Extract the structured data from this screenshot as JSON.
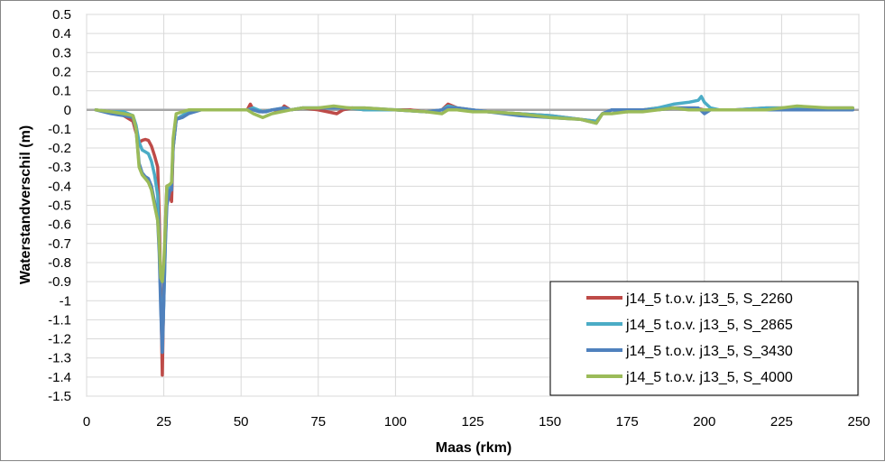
{
  "chart_data": {
    "type": "line",
    "xlabel": "Maas (rkm)",
    "ylabel": "Waterstandverschil (m)",
    "xlim": [
      0,
      250
    ],
    "ylim": [
      -1.5,
      0.5
    ],
    "x_ticks": [
      0,
      25,
      50,
      75,
      100,
      125,
      150,
      175,
      200,
      225,
      250
    ],
    "y_ticks": [
      0.5,
      0.4,
      0.3,
      0.2,
      0.1,
      0,
      -0.1,
      -0.2,
      -0.3,
      -0.4,
      -0.5,
      -0.6,
      -0.7,
      -0.8,
      -0.9,
      -1,
      -1.1,
      -1.2,
      -1.3,
      -1.4,
      -1.5
    ],
    "grid": true,
    "legend_position": "bottom-right",
    "zero_line_color": "#A6A6A6",
    "series": [
      {
        "name": "j14_5 t.o.v. j13_5, S_2260",
        "color": "#BE4B48",
        "points": [
          [
            3,
            0
          ],
          [
            8,
            -0.01
          ],
          [
            12,
            -0.03
          ],
          [
            15,
            -0.06
          ],
          [
            16,
            -0.12
          ],
          [
            17,
            -0.17
          ],
          [
            18,
            -0.16
          ],
          [
            19,
            -0.155
          ],
          [
            20,
            -0.16
          ],
          [
            21,
            -0.19
          ],
          [
            22,
            -0.24
          ],
          [
            23,
            -0.3
          ],
          [
            23.5,
            -0.55
          ],
          [
            24,
            -0.95
          ],
          [
            24.5,
            -1.39
          ],
          [
            25,
            -0.95
          ],
          [
            25.5,
            -0.6
          ],
          [
            26,
            -0.4
          ],
          [
            27,
            -0.45
          ],
          [
            27.5,
            -0.48
          ],
          [
            28,
            -0.2
          ],
          [
            29,
            -0.05
          ],
          [
            31,
            -0.03
          ],
          [
            33,
            -0.01
          ],
          [
            37,
            0
          ],
          [
            45,
            0
          ],
          [
            50,
            0
          ],
          [
            52,
            0
          ],
          [
            53,
            0.03
          ],
          [
            54,
            0
          ],
          [
            57,
            -0.01
          ],
          [
            60,
            0
          ],
          [
            63,
            0
          ],
          [
            64,
            0.02
          ],
          [
            66,
            0
          ],
          [
            70,
            0.01
          ],
          [
            75,
            0
          ],
          [
            78,
            -0.01
          ],
          [
            81,
            -0.02
          ],
          [
            83,
            0
          ],
          [
            86,
            0.01
          ],
          [
            90,
            0
          ],
          [
            100,
            0
          ],
          [
            105,
            0
          ],
          [
            110,
            -0.01
          ],
          [
            115,
            0
          ],
          [
            117,
            0.03
          ],
          [
            120,
            0.01
          ],
          [
            125,
            0
          ],
          [
            130,
            -0.01
          ],
          [
            140,
            -0.02
          ],
          [
            150,
            -0.03
          ],
          [
            160,
            -0.05
          ],
          [
            165,
            -0.06
          ],
          [
            167,
            -0.02
          ],
          [
            170,
            0
          ],
          [
            175,
            -0.01
          ],
          [
            180,
            0
          ],
          [
            185,
            0.01
          ],
          [
            190,
            0.01
          ],
          [
            195,
            0.01
          ],
          [
            197,
            0.01
          ],
          [
            200,
            0
          ],
          [
            203,
            0
          ],
          [
            210,
            0
          ],
          [
            220,
            0.01
          ],
          [
            230,
            0.01
          ],
          [
            240,
            0.01
          ],
          [
            248,
            0.01
          ]
        ]
      },
      {
        "name": "j14_5 t.o.v. j13_5, S_2865",
        "color": "#4BACC6",
        "points": [
          [
            3,
            0
          ],
          [
            8,
            -0.01
          ],
          [
            12,
            -0.01
          ],
          [
            15,
            -0.03
          ],
          [
            16,
            -0.08
          ],
          [
            17,
            -0.17
          ],
          [
            18,
            -0.21
          ],
          [
            19,
            -0.22
          ],
          [
            20,
            -0.23
          ],
          [
            21,
            -0.27
          ],
          [
            22,
            -0.34
          ],
          [
            23,
            -0.45
          ],
          [
            23.5,
            -0.7
          ],
          [
            24,
            -1.0
          ],
          [
            24.5,
            -1.27
          ],
          [
            25,
            -1.0
          ],
          [
            25.5,
            -0.7
          ],
          [
            26,
            -0.45
          ],
          [
            27,
            -0.4
          ],
          [
            27.5,
            -0.39
          ],
          [
            28,
            -0.2
          ],
          [
            29,
            -0.05
          ],
          [
            31,
            -0.03
          ],
          [
            33,
            -0.01
          ],
          [
            37,
            0
          ],
          [
            45,
            0
          ],
          [
            50,
            0
          ],
          [
            52,
            0
          ],
          [
            54,
            0.01
          ],
          [
            57,
            -0.01
          ],
          [
            60,
            0
          ],
          [
            64,
            0.01
          ],
          [
            66,
            0
          ],
          [
            70,
            0.01
          ],
          [
            75,
            0.01
          ],
          [
            80,
            0.01
          ],
          [
            85,
            0.01
          ],
          [
            90,
            0
          ],
          [
            100,
            0
          ],
          [
            110,
            -0.01
          ],
          [
            115,
            0
          ],
          [
            117,
            0.02
          ],
          [
            120,
            0.01
          ],
          [
            125,
            0
          ],
          [
            130,
            -0.01
          ],
          [
            140,
            -0.02
          ],
          [
            150,
            -0.03
          ],
          [
            160,
            -0.05
          ],
          [
            165,
            -0.06
          ],
          [
            167,
            -0.02
          ],
          [
            170,
            0
          ],
          [
            175,
            -0.01
          ],
          [
            180,
            0
          ],
          [
            185,
            0.01
          ],
          [
            190,
            0.03
          ],
          [
            195,
            0.04
          ],
          [
            198,
            0.05
          ],
          [
            199,
            0.07
          ],
          [
            200,
            0.04
          ],
          [
            202,
            0.01
          ],
          [
            205,
            0
          ],
          [
            210,
            0
          ],
          [
            220,
            0.01
          ],
          [
            230,
            0.01
          ],
          [
            240,
            0.01
          ],
          [
            248,
            0.01
          ]
        ]
      },
      {
        "name": "j14_5 t.o.v. j13_5, S_3430",
        "color": "#4F81BD",
        "points": [
          [
            3,
            0
          ],
          [
            8,
            -0.02
          ],
          [
            12,
            -0.03
          ],
          [
            15,
            -0.04
          ],
          [
            16,
            -0.1
          ],
          [
            17,
            -0.28
          ],
          [
            18,
            -0.33
          ],
          [
            19,
            -0.35
          ],
          [
            20,
            -0.36
          ],
          [
            21,
            -0.4
          ],
          [
            22,
            -0.48
          ],
          [
            23,
            -0.58
          ],
          [
            23.5,
            -0.75
          ],
          [
            24,
            -1.05
          ],
          [
            24.5,
            -1.27
          ],
          [
            25,
            -1.0
          ],
          [
            25.5,
            -0.7
          ],
          [
            26,
            -0.5
          ],
          [
            27,
            -0.42
          ],
          [
            27.5,
            -0.42
          ],
          [
            28,
            -0.2
          ],
          [
            29,
            -0.05
          ],
          [
            31,
            -0.04
          ],
          [
            33,
            -0.02
          ],
          [
            37,
            0
          ],
          [
            45,
            0
          ],
          [
            50,
            0
          ],
          [
            52,
            0
          ],
          [
            54,
            0
          ],
          [
            56,
            -0.01
          ],
          [
            58,
            -0.01
          ],
          [
            60,
            0
          ],
          [
            64,
            0.01
          ],
          [
            66,
            0
          ],
          [
            70,
            0.01
          ],
          [
            75,
            0.01
          ],
          [
            80,
            0.01
          ],
          [
            85,
            0.01
          ],
          [
            90,
            0.01
          ],
          [
            100,
            0
          ],
          [
            110,
            -0.01
          ],
          [
            115,
            0
          ],
          [
            117,
            0.01
          ],
          [
            120,
            0.01
          ],
          [
            125,
            0
          ],
          [
            130,
            -0.01
          ],
          [
            140,
            -0.03
          ],
          [
            150,
            -0.04
          ],
          [
            160,
            -0.05
          ],
          [
            165,
            -0.07
          ],
          [
            167,
            -0.02
          ],
          [
            170,
            0
          ],
          [
            175,
            0
          ],
          [
            180,
            0
          ],
          [
            185,
            0
          ],
          [
            190,
            0.01
          ],
          [
            195,
            0.01
          ],
          [
            198,
            0.01
          ],
          [
            200,
            -0.02
          ],
          [
            202,
            0
          ],
          [
            205,
            0
          ],
          [
            210,
            0
          ],
          [
            220,
            0
          ],
          [
            230,
            0
          ],
          [
            240,
            0
          ],
          [
            248,
            0
          ]
        ]
      },
      {
        "name": "j14_5 t.o.v. j13_5, S_4000",
        "color": "#9BBB59",
        "points": [
          [
            3,
            0
          ],
          [
            8,
            -0.01
          ],
          [
            12,
            -0.02
          ],
          [
            15,
            -0.03
          ],
          [
            16,
            -0.1
          ],
          [
            17,
            -0.3
          ],
          [
            18,
            -0.34
          ],
          [
            19,
            -0.36
          ],
          [
            20,
            -0.38
          ],
          [
            21,
            -0.42
          ],
          [
            22,
            -0.5
          ],
          [
            23,
            -0.58
          ],
          [
            23.5,
            -0.7
          ],
          [
            24,
            -0.88
          ],
          [
            24.5,
            -0.9
          ],
          [
            25,
            -0.8
          ],
          [
            25.5,
            -0.6
          ],
          [
            26,
            -0.4
          ],
          [
            27,
            -0.39
          ],
          [
            27.5,
            -0.38
          ],
          [
            28,
            -0.15
          ],
          [
            29,
            -0.02
          ],
          [
            31,
            -0.01
          ],
          [
            33,
            0
          ],
          [
            37,
            0
          ],
          [
            45,
            0
          ],
          [
            50,
            0
          ],
          [
            52,
            0
          ],
          [
            54,
            -0.02
          ],
          [
            57,
            -0.04
          ],
          [
            60,
            -0.02
          ],
          [
            63,
            -0.01
          ],
          [
            66,
            0
          ],
          [
            70,
            0.01
          ],
          [
            75,
            0.01
          ],
          [
            80,
            0.02
          ],
          [
            85,
            0.01
          ],
          [
            90,
            0.01
          ],
          [
            100,
            0
          ],
          [
            110,
            -0.01
          ],
          [
            115,
            -0.02
          ],
          [
            117,
            0
          ],
          [
            120,
            0
          ],
          [
            125,
            -0.01
          ],
          [
            130,
            -0.01
          ],
          [
            140,
            -0.02
          ],
          [
            150,
            -0.04
          ],
          [
            160,
            -0.05
          ],
          [
            165,
            -0.07
          ],
          [
            167,
            -0.02
          ],
          [
            170,
            -0.02
          ],
          [
            175,
            -0.01
          ],
          [
            180,
            -0.01
          ],
          [
            185,
            0
          ],
          [
            190,
            0.01
          ],
          [
            195,
            0
          ],
          [
            198,
            0
          ],
          [
            200,
            0
          ],
          [
            202,
            0
          ],
          [
            205,
            0
          ],
          [
            210,
            0
          ],
          [
            220,
            0
          ],
          [
            225,
            0.01
          ],
          [
            230,
            0.02
          ],
          [
            240,
            0.01
          ],
          [
            248,
            0.01
          ]
        ]
      }
    ]
  }
}
